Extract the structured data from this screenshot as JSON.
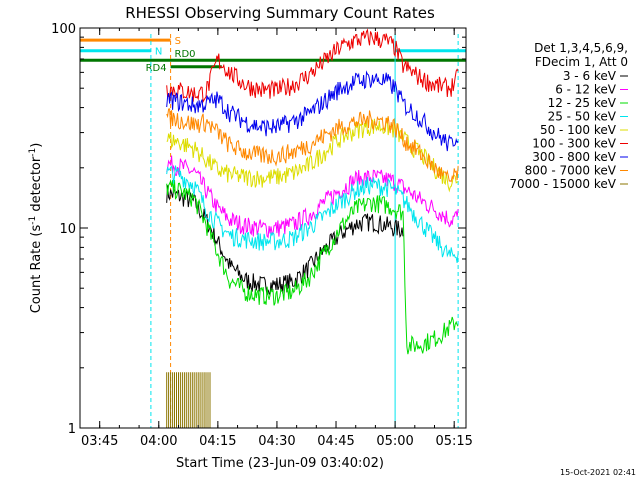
{
  "chart_data": {
    "type": "line",
    "title": "RHESSI Observing Summary Count Rates",
    "xlabel": "Start Time (23-Jun-09 03:40:02)",
    "ylabel": "Count Rate (s⁻¹ detector⁻¹)",
    "ylabel_main": "Count Rate (s",
    "ylabel_sup1": "-1",
    "ylabel_mid": " detector",
    "ylabel_sup2": "-1",
    "ylabel_end": ")",
    "y_scale": "log",
    "ylim": [
      1,
      100
    ],
    "xlim": [
      "03:40",
      "05:18"
    ],
    "x_ticks": [
      "03:45",
      "04:00",
      "04:15",
      "04:30",
      "04:45",
      "05:00",
      "05:15"
    ],
    "y_ticks": [
      "1",
      "10",
      "100"
    ],
    "legend_header": [
      "Det 1,3,4,5,6,9,",
      "FDecim 1, Att 0"
    ],
    "legend_position": "right",
    "timestamp": "15-Oct-2021 02:41",
    "series": [
      {
        "name": "3 - 6 keV",
        "color": "#000000",
        "points": [
          [
            "04:02",
            15
          ],
          [
            "04:05",
            14.5
          ],
          [
            "04:09",
            13.5
          ],
          [
            "04:12",
            11
          ],
          [
            "04:15",
            8.5
          ],
          [
            "04:18",
            6.5
          ],
          [
            "04:22",
            5.5
          ],
          [
            "04:26",
            5.2
          ],
          [
            "04:30",
            5.2
          ],
          [
            "04:34",
            5.4
          ],
          [
            "04:38",
            6.3
          ],
          [
            "04:42",
            7.8
          ],
          [
            "04:46",
            9.3
          ],
          [
            "04:50",
            10.5
          ],
          [
            "04:54",
            10.8
          ],
          [
            "04:58",
            10.3
          ],
          [
            "05:00",
            10
          ],
          [
            "05:02",
            9.8
          ]
        ]
      },
      {
        "name": "6 - 12 keV",
        "color": "#ff00ff",
        "points": [
          [
            "04:02",
            21
          ],
          [
            "04:05",
            20.5
          ],
          [
            "04:09",
            19
          ],
          [
            "04:12",
            15.5
          ],
          [
            "04:15",
            12.5
          ],
          [
            "04:18",
            11
          ],
          [
            "04:22",
            10.3
          ],
          [
            "04:26",
            10
          ],
          [
            "04:30",
            10
          ],
          [
            "04:34",
            10.4
          ],
          [
            "04:38",
            11.5
          ],
          [
            "04:42",
            13.5
          ],
          [
            "04:46",
            15.5
          ],
          [
            "04:50",
            17.5
          ],
          [
            "04:54",
            18
          ],
          [
            "04:58",
            17.5
          ],
          [
            "05:00",
            17
          ],
          [
            "05:02",
            16
          ],
          [
            "05:06",
            14
          ],
          [
            "05:10",
            12.5
          ],
          [
            "05:14",
            11
          ],
          [
            "05:16",
            11.5
          ]
        ]
      },
      {
        "name": "12 - 25 keV",
        "color": "#00dd00",
        "points": [
          [
            "04:02",
            16
          ],
          [
            "04:05",
            15.5
          ],
          [
            "04:09",
            14
          ],
          [
            "04:12",
            10.5
          ],
          [
            "04:15",
            7.5
          ],
          [
            "04:18",
            5.5
          ],
          [
            "04:22",
            4.8
          ],
          [
            "04:26",
            4.6
          ],
          [
            "04:30",
            4.6
          ],
          [
            "04:34",
            4.8
          ],
          [
            "04:38",
            5.6
          ],
          [
            "04:42",
            7.5
          ],
          [
            "04:46",
            10
          ],
          [
            "04:50",
            12.5
          ],
          [
            "04:54",
            13.5
          ],
          [
            "04:58",
            13
          ],
          [
            "05:00",
            12.5
          ],
          [
            "05:02",
            12
          ],
          [
            "05:03",
            2.6
          ],
          [
            "05:06",
            2.6
          ],
          [
            "05:10",
            2.8
          ],
          [
            "05:14",
            3.2
          ],
          [
            "05:16",
            3.5
          ]
        ]
      },
      {
        "name": "25 - 50 keV",
        "color": "#00e5ee",
        "points": [
          [
            "04:02",
            19
          ],
          [
            "04:05",
            18.5
          ],
          [
            "04:09",
            16.5
          ],
          [
            "04:12",
            12.5
          ],
          [
            "04:15",
            10.5
          ],
          [
            "04:18",
            9.2
          ],
          [
            "04:22",
            8.8
          ],
          [
            "04:26",
            8.6
          ],
          [
            "04:30",
            8.6
          ],
          [
            "04:34",
            8.9
          ],
          [
            "04:38",
            10
          ],
          [
            "04:42",
            11.5
          ],
          [
            "04:46",
            13.5
          ],
          [
            "04:50",
            15.5
          ],
          [
            "04:54",
            16.5
          ],
          [
            "04:58",
            16
          ],
          [
            "05:00",
            15.5
          ],
          [
            "05:02",
            14
          ],
          [
            "05:06",
            11
          ],
          [
            "05:10",
            8.8
          ],
          [
            "05:14",
            7.2
          ],
          [
            "05:16",
            7.5
          ]
        ]
      },
      {
        "name": "50 - 100 keV",
        "color": "#dddd00",
        "points": [
          [
            "04:02",
            28
          ],
          [
            "04:05",
            27
          ],
          [
            "04:09",
            25
          ],
          [
            "04:12",
            22
          ],
          [
            "04:15",
            19.5
          ],
          [
            "04:18",
            18.5
          ],
          [
            "04:22",
            18
          ],
          [
            "04:26",
            17.8
          ],
          [
            "04:30",
            18
          ],
          [
            "04:34",
            18.8
          ],
          [
            "04:38",
            20.5
          ],
          [
            "04:42",
            24
          ],
          [
            "04:46",
            28
          ],
          [
            "04:50",
            31
          ],
          [
            "04:54",
            32.5
          ],
          [
            "04:58",
            32
          ],
          [
            "05:00",
            31
          ],
          [
            "05:02",
            28
          ],
          [
            "05:06",
            24
          ],
          [
            "05:10",
            20
          ],
          [
            "05:14",
            17
          ],
          [
            "05:16",
            18
          ]
        ]
      },
      {
        "name": "100 - 300 keV",
        "color": "#ee0000",
        "points": [
          [
            "04:02",
            50
          ],
          [
            "04:05",
            49
          ],
          [
            "04:09",
            47
          ],
          [
            "04:12",
            48
          ],
          [
            "04:15",
            70
          ],
          [
            "04:18",
            60
          ],
          [
            "04:22",
            52
          ],
          [
            "04:26",
            49
          ],
          [
            "04:30",
            49
          ],
          [
            "04:34",
            52
          ],
          [
            "04:38",
            58
          ],
          [
            "04:42",
            68
          ],
          [
            "04:46",
            80
          ],
          [
            "04:50",
            87
          ],
          [
            "04:54",
            90
          ],
          [
            "04:58",
            86
          ],
          [
            "05:00",
            80
          ],
          [
            "05:02",
            65
          ],
          [
            "05:06",
            57
          ],
          [
            "05:10",
            52
          ],
          [
            "05:14",
            50
          ],
          [
            "05:16",
            57
          ]
        ]
      },
      {
        "name": "300 - 800 keV",
        "color": "#0000ee",
        "points": [
          [
            "04:02",
            44
          ],
          [
            "04:05",
            43
          ],
          [
            "04:09",
            41
          ],
          [
            "04:12",
            42
          ],
          [
            "04:15",
            44
          ],
          [
            "04:18",
            38
          ],
          [
            "04:22",
            34
          ],
          [
            "04:26",
            32
          ],
          [
            "04:30",
            32
          ],
          [
            "04:34",
            34
          ],
          [
            "04:38",
            37
          ],
          [
            "04:42",
            43
          ],
          [
            "04:46",
            50
          ],
          [
            "04:50",
            54
          ],
          [
            "04:54",
            56
          ],
          [
            "04:58",
            54
          ],
          [
            "05:00",
            50
          ],
          [
            "05:02",
            42
          ],
          [
            "05:06",
            36
          ],
          [
            "05:10",
            30
          ],
          [
            "05:14",
            26
          ],
          [
            "05:16",
            30
          ]
        ]
      },
      {
        "name": "800 - 7000 keV",
        "color": "#ff8800",
        "points": [
          [
            "04:02",
            36
          ],
          [
            "04:05",
            35
          ],
          [
            "04:09",
            33
          ],
          [
            "04:12",
            34
          ],
          [
            "04:15",
            30
          ],
          [
            "04:18",
            26
          ],
          [
            "04:22",
            24
          ],
          [
            "04:26",
            23
          ],
          [
            "04:30",
            23
          ],
          [
            "04:34",
            24
          ],
          [
            "04:38",
            26
          ],
          [
            "04:42",
            29
          ],
          [
            "04:46",
            32
          ],
          [
            "04:50",
            34
          ],
          [
            "04:54",
            35
          ],
          [
            "04:58",
            34
          ],
          [
            "05:00",
            32
          ],
          [
            "05:02",
            28
          ],
          [
            "05:06",
            24
          ],
          [
            "05:10",
            20
          ],
          [
            "05:14",
            17
          ],
          [
            "05:16",
            19
          ]
        ]
      },
      {
        "name": "7000 - 15000 keV",
        "color": "#8b7500",
        "points": [
          [
            "04:02",
            1.9
          ],
          [
            "04:05",
            1.9
          ],
          [
            "04:08",
            1.9
          ],
          [
            "04:11",
            1.9
          ],
          [
            "04:13",
            1.9
          ]
        ]
      }
    ],
    "annotations": [
      {
        "label": "S",
        "color": "#ff8800",
        "x_start": "03:40",
        "x_end": "04:03",
        "y": 87
      },
      {
        "label": "N",
        "color": "#00e5ee",
        "x_start": "03:40",
        "x_end": "03:58",
        "y": 77
      },
      {
        "label": "RD0",
        "color": "#007700",
        "x_start": "03:40",
        "x_end": "05:18",
        "y": 69
      },
      {
        "label": "RD4",
        "color": "#007700",
        "x_start": "04:03",
        "x_end": "04:16",
        "y": 64
      }
    ],
    "vertical_markers": [
      {
        "x": "03:58",
        "color": "#00e5ee",
        "style": "dashed"
      },
      {
        "x": "04:03",
        "color": "#ff8800",
        "style": "dashed"
      },
      {
        "x": "05:00",
        "color": "#00e5ee",
        "style": "solid"
      },
      {
        "x": "05:16",
        "color": "#00e5ee",
        "style": "dashed"
      }
    ]
  }
}
